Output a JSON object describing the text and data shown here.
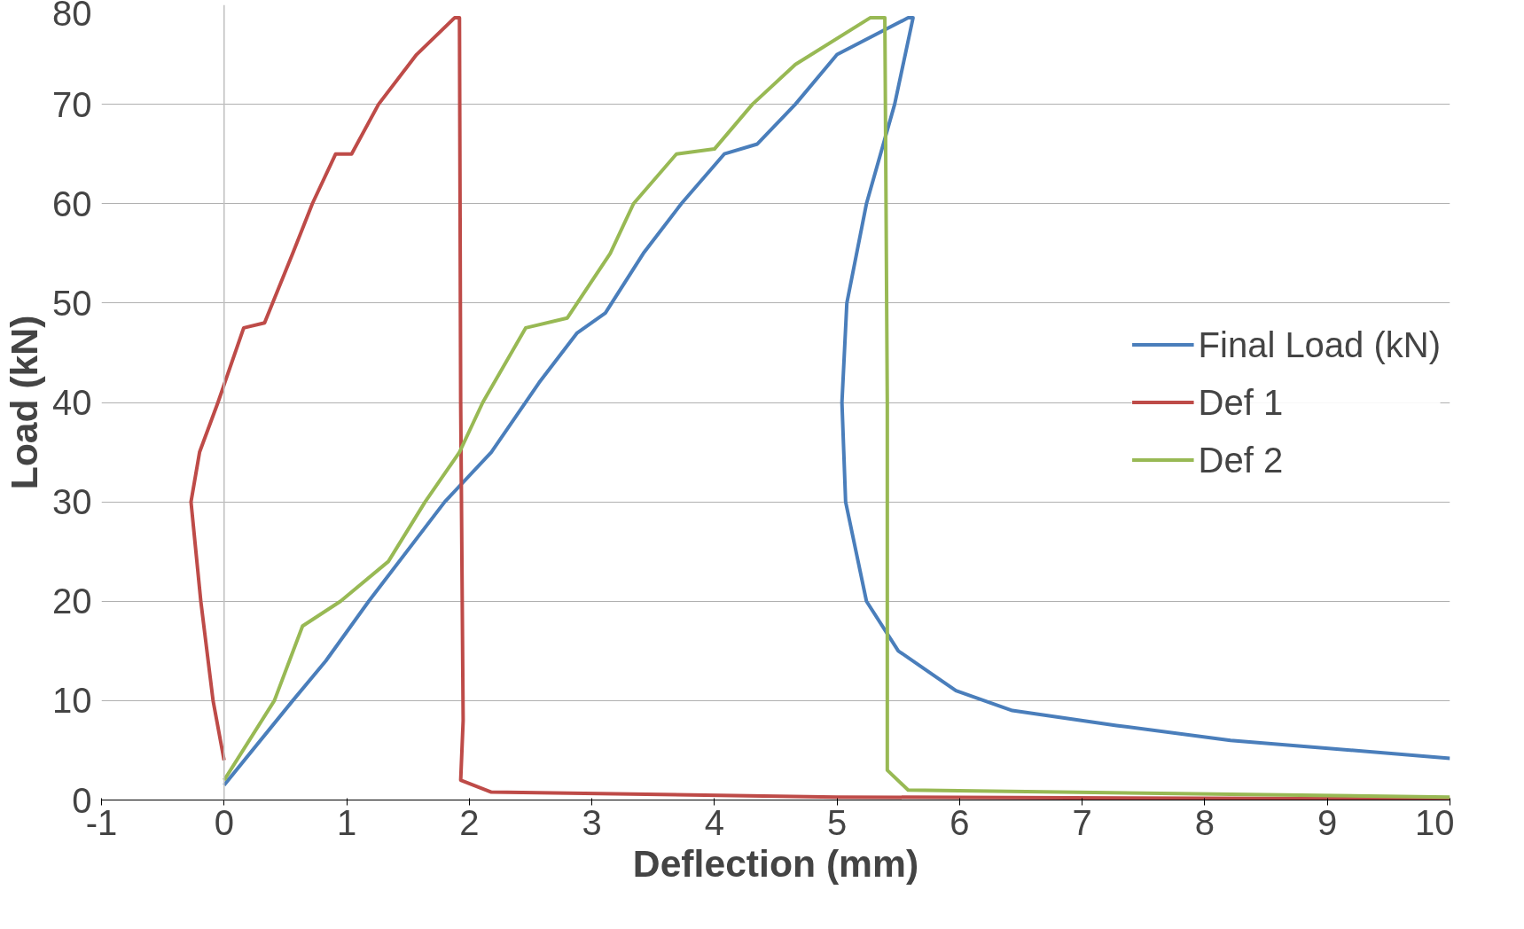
{
  "chart_data": {
    "type": "line",
    "xlabel": "Deflection (mm)",
    "ylabel": "Load (kN)",
    "xlim": [
      -1,
      10
    ],
    "ylim": [
      0,
      80
    ],
    "xticks": [
      -1,
      0,
      1,
      2,
      3,
      4,
      5,
      6,
      7,
      8,
      9,
      10
    ],
    "yticks": [
      0,
      10,
      20,
      30,
      40,
      50,
      60,
      70,
      80
    ],
    "grid": "y",
    "legend": "right",
    "line_style": "solid",
    "ref_lines": [
      {
        "axis": "x",
        "value": 0,
        "color": "#c0c0c0"
      }
    ],
    "series": [
      {
        "name": "Final Load (kN)",
        "color": "#4a7ebb",
        "x": [
          0,
          0.56,
          0.83,
          1.18,
          1.8,
          2.18,
          2.57,
          2.88,
          3.11,
          3.42,
          3.73,
          4.08,
          4.35,
          4.66,
          5.0,
          5.58,
          5.62,
          5.47,
          5.24,
          5.08,
          5.04,
          5.07,
          5.24,
          5.5,
          5.97,
          6.43,
          7.28,
          8.21,
          10
        ],
        "values": [
          1.5,
          10,
          14,
          20,
          30,
          35,
          42,
          47,
          49,
          55,
          60,
          65,
          66,
          70,
          75,
          78.7,
          78.7,
          70,
          60,
          50,
          40,
          30,
          20,
          15,
          11,
          9,
          7.5,
          6,
          4.2
        ]
      },
      {
        "name": "Def 1",
        "color": "#be4b48",
        "x": [
          0,
          -0.09,
          -0.19,
          -0.27,
          -0.2,
          -0.05,
          0.16,
          0.33,
          0.56,
          0.72,
          0.91,
          1.04,
          1.26,
          1.57,
          1.88,
          1.92,
          1.93,
          1.95,
          1.93,
          2.18,
          5,
          10
        ],
        "values": [
          4,
          10,
          20,
          30,
          35,
          40,
          47.5,
          48,
          55,
          60,
          65,
          65,
          70,
          75,
          78.7,
          78.7,
          40,
          8,
          2,
          0.8,
          0.3,
          0.1
        ]
      },
      {
        "name": "Def 2",
        "color": "#98b954",
        "x": [
          0,
          0.41,
          0.64,
          0.95,
          1.34,
          1.64,
          1.92,
          2.11,
          2.46,
          2.8,
          3.15,
          3.34,
          3.69,
          4.0,
          4.31,
          4.66,
          5.27,
          5.39,
          5.41,
          5.41,
          5.58,
          10
        ],
        "values": [
          2,
          10,
          17.5,
          20,
          24,
          30,
          35,
          40,
          47.5,
          48.5,
          55,
          60,
          65,
          65.5,
          70,
          74,
          78.7,
          78.7,
          40,
          3,
          1,
          0.3
        ]
      }
    ]
  }
}
